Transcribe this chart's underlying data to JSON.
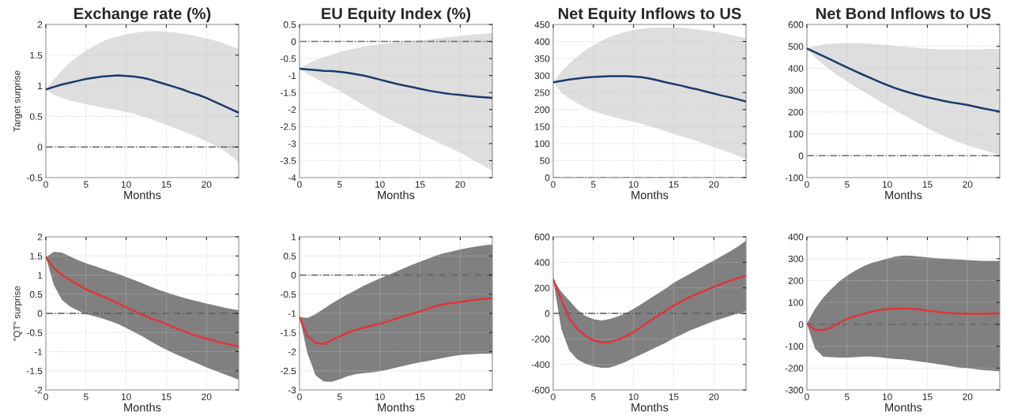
{
  "chart_data": [
    {
      "type": "line",
      "title": "Exchange rate (%)",
      "xlabel": "Months",
      "ylabel": "Target surprise",
      "x": [
        0,
        1,
        2,
        3,
        4,
        5,
        6,
        7,
        8,
        9,
        10,
        11,
        12,
        13,
        14,
        15,
        16,
        17,
        18,
        19,
        20,
        21,
        22,
        23,
        24
      ],
      "xlim": [
        0,
        24
      ],
      "xticks": [
        0,
        5,
        10,
        15,
        20
      ],
      "ylim": [
        -0.5,
        2
      ],
      "yticks": [
        -0.5,
        0,
        0.5,
        1,
        1.5,
        2
      ],
      "grid": true,
      "ref_lines": [
        {
          "axis": "y",
          "value": 0,
          "color": "#555555",
          "line_style": "dashdot"
        }
      ],
      "series": [
        {
          "color": "#1b3a6b",
          "values": [
            0.94,
            0.98,
            1.02,
            1.05,
            1.08,
            1.11,
            1.13,
            1.15,
            1.16,
            1.17,
            1.16,
            1.15,
            1.13,
            1.1,
            1.06,
            1.02,
            0.98,
            0.94,
            0.89,
            0.85,
            0.8,
            0.74,
            0.68,
            0.62,
            0.56
          ],
          "lower": [
            0.94,
            0.85,
            0.8,
            0.76,
            0.73,
            0.7,
            0.67,
            0.64,
            0.62,
            0.6,
            0.57,
            0.54,
            0.5,
            0.46,
            0.41,
            0.36,
            0.31,
            0.26,
            0.21,
            0.15,
            0.09,
            0.03,
            -0.04,
            -0.14,
            -0.25
          ],
          "upper": [
            0.94,
            1.1,
            1.25,
            1.38,
            1.48,
            1.57,
            1.65,
            1.72,
            1.77,
            1.81,
            1.84,
            1.86,
            1.88,
            1.89,
            1.89,
            1.88,
            1.87,
            1.85,
            1.83,
            1.8,
            1.77,
            1.74,
            1.7,
            1.65,
            1.6
          ]
        }
      ]
    },
    {
      "type": "line",
      "title": "EU Equity Index (%)",
      "xlabel": "Months",
      "x": [
        0,
        1,
        2,
        3,
        4,
        5,
        6,
        7,
        8,
        9,
        10,
        11,
        12,
        13,
        14,
        15,
        16,
        17,
        18,
        19,
        20,
        21,
        22,
        23,
        24
      ],
      "xlim": [
        0,
        24
      ],
      "xticks": [
        0,
        5,
        10,
        15,
        20
      ],
      "ylim": [
        -4,
        0.5
      ],
      "yticks": [
        -4,
        -3.5,
        -3,
        -2.5,
        -2,
        -1.5,
        -1,
        -0.5,
        0,
        0.5
      ],
      "grid": true,
      "ref_lines": [
        {
          "axis": "y",
          "value": 0,
          "color": "#555555",
          "line_style": "dashdot"
        }
      ],
      "series": [
        {
          "color": "#1b3a6b",
          "values": [
            -0.8,
            -0.82,
            -0.84,
            -0.86,
            -0.87,
            -0.89,
            -0.92,
            -0.96,
            -1.0,
            -1.06,
            -1.12,
            -1.18,
            -1.24,
            -1.29,
            -1.34,
            -1.39,
            -1.44,
            -1.48,
            -1.52,
            -1.55,
            -1.57,
            -1.6,
            -1.62,
            -1.64,
            -1.66
          ],
          "lower": [
            -0.8,
            -0.95,
            -1.08,
            -1.21,
            -1.33,
            -1.45,
            -1.59,
            -1.73,
            -1.87,
            -2.01,
            -2.14,
            -2.26,
            -2.38,
            -2.49,
            -2.61,
            -2.72,
            -2.83,
            -2.94,
            -3.05,
            -3.16,
            -3.27,
            -3.4,
            -3.53,
            -3.66,
            -3.8
          ],
          "upper": [
            -0.8,
            -0.66,
            -0.55,
            -0.46,
            -0.38,
            -0.31,
            -0.25,
            -0.2,
            -0.15,
            -0.11,
            -0.08,
            -0.05,
            -0.03,
            -0.01,
            0.01,
            0.03,
            0.05,
            0.08,
            0.11,
            0.14,
            0.16,
            0.19,
            0.21,
            0.23,
            0.25
          ]
        }
      ]
    },
    {
      "type": "line",
      "title": "Net Equity Inflows to US",
      "xlabel": "Months",
      "x": [
        0,
        1,
        2,
        3,
        4,
        5,
        6,
        7,
        8,
        9,
        10,
        11,
        12,
        13,
        14,
        15,
        16,
        17,
        18,
        19,
        20,
        21,
        22,
        23,
        24
      ],
      "xlim": [
        0,
        24
      ],
      "xticks": [
        0,
        5,
        10,
        15,
        20
      ],
      "ylim": [
        0,
        450
      ],
      "yticks": [
        0,
        50,
        100,
        150,
        200,
        250,
        300,
        350,
        400,
        450
      ],
      "grid": true,
      "ref_lines": [
        {
          "axis": "y",
          "value": 0,
          "color": "#555555",
          "line_style": "dashdot"
        }
      ],
      "series": [
        {
          "color": "#1b3a6b",
          "values": [
            280,
            284,
            288,
            291,
            294,
            296,
            297,
            298,
            298,
            298,
            297,
            295,
            291,
            286,
            280,
            275,
            270,
            264,
            259,
            253,
            247,
            241,
            236,
            230,
            224
          ],
          "lower": [
            280,
            250,
            232,
            218,
            206,
            196,
            188,
            181,
            175,
            169,
            164,
            158,
            151,
            144,
            136,
            128,
            121,
            114,
            106,
            98,
            90,
            81,
            73,
            64,
            55
          ],
          "upper": [
            280,
            310,
            335,
            356,
            374,
            389,
            402,
            413,
            421,
            428,
            434,
            437,
            440,
            441,
            441,
            441,
            440,
            438,
            435,
            432,
            429,
            425,
            420,
            415,
            410
          ]
        }
      ]
    },
    {
      "type": "line",
      "title": "Net Bond Inflows to US",
      "xlabel": "Months",
      "x": [
        0,
        1,
        2,
        3,
        4,
        5,
        6,
        7,
        8,
        9,
        10,
        11,
        12,
        13,
        14,
        15,
        16,
        17,
        18,
        19,
        20,
        21,
        22,
        23,
        24
      ],
      "xlim": [
        0,
        24
      ],
      "xticks": [
        0,
        5,
        10,
        15,
        20
      ],
      "ylim": [
        -100,
        600
      ],
      "yticks": [
        -100,
        0,
        100,
        200,
        300,
        400,
        500,
        600
      ],
      "grid": true,
      "ref_lines": [
        {
          "axis": "y",
          "value": 0,
          "color": "#555555",
          "line_style": "dashdot"
        }
      ],
      "series": [
        {
          "color": "#1b3a6b",
          "values": [
            490,
            473,
            456,
            439,
            421,
            404,
            387,
            370,
            354,
            338,
            323,
            309,
            297,
            286,
            276,
            267,
            259,
            251,
            244,
            238,
            232,
            224,
            216,
            209,
            202
          ],
          "lower": [
            490,
            450,
            418,
            390,
            364,
            340,
            317,
            294,
            272,
            250,
            229,
            208,
            187,
            166,
            146,
            126,
            108,
            91,
            75,
            60,
            47,
            36,
            25,
            15,
            5
          ],
          "upper": [
            490,
            500,
            508,
            512,
            514,
            515,
            515,
            514,
            512,
            509,
            506,
            502,
            499,
            495,
            492,
            489,
            487,
            485,
            485,
            485,
            485,
            486,
            487,
            488,
            488
          ]
        }
      ]
    },
    {
      "type": "line",
      "xlabel": "Months",
      "ylabel": "\"QT\" surprise",
      "x": [
        0,
        1,
        2,
        3,
        4,
        5,
        6,
        7,
        8,
        9,
        10,
        11,
        12,
        13,
        14,
        15,
        16,
        17,
        18,
        19,
        20,
        21,
        22,
        23,
        24
      ],
      "xlim": [
        0,
        24
      ],
      "xticks": [
        0,
        5,
        10,
        15,
        20
      ],
      "ylim": [
        -2,
        2
      ],
      "yticks": [
        -2,
        -1.5,
        -1,
        -0.5,
        0,
        0.5,
        1,
        1.5,
        2
      ],
      "grid": true,
      "ref_lines": [
        {
          "axis": "y",
          "value": 0,
          "color": "#444444",
          "line_style": "dashdot"
        }
      ],
      "series": [
        {
          "color": "#e0353b",
          "values": [
            1.47,
            1.18,
            1.0,
            0.87,
            0.75,
            0.63,
            0.54,
            0.45,
            0.36,
            0.26,
            0.16,
            0.06,
            -0.04,
            -0.12,
            -0.2,
            -0.28,
            -0.37,
            -0.45,
            -0.53,
            -0.6,
            -0.66,
            -0.72,
            -0.77,
            -0.82,
            -0.86
          ],
          "lower": [
            1.47,
            0.74,
            0.35,
            0.18,
            0.07,
            -0.02,
            -0.07,
            -0.13,
            -0.2,
            -0.28,
            -0.38,
            -0.49,
            -0.6,
            -0.72,
            -0.84,
            -0.95,
            -1.05,
            -1.14,
            -1.23,
            -1.32,
            -1.41,
            -1.49,
            -1.57,
            -1.65,
            -1.73
          ],
          "upper": [
            1.47,
            1.61,
            1.59,
            1.49,
            1.39,
            1.31,
            1.24,
            1.17,
            1.1,
            1.03,
            0.95,
            0.87,
            0.79,
            0.7,
            0.62,
            0.55,
            0.48,
            0.42,
            0.36,
            0.31,
            0.26,
            0.21,
            0.16,
            0.12,
            0.08
          ]
        }
      ]
    },
    {
      "type": "line",
      "xlabel": "Months",
      "x": [
        0,
        1,
        2,
        3,
        4,
        5,
        6,
        7,
        8,
        9,
        10,
        11,
        12,
        13,
        14,
        15,
        16,
        17,
        18,
        19,
        20,
        21,
        22,
        23,
        24
      ],
      "xlim": [
        0,
        24
      ],
      "xticks": [
        0,
        5,
        10,
        15,
        20
      ],
      "ylim": [
        -3,
        1
      ],
      "yticks": [
        -3,
        -2.5,
        -2,
        -1.5,
        -1,
        -0.5,
        0,
        0.5,
        1
      ],
      "grid": true,
      "ref_lines": [
        {
          "axis": "y",
          "value": 0,
          "color": "#444444",
          "line_style": "dashdot"
        }
      ],
      "series": [
        {
          "color": "#e0353b",
          "values": [
            -1.1,
            -1.6,
            -1.77,
            -1.8,
            -1.7,
            -1.6,
            -1.5,
            -1.43,
            -1.37,
            -1.32,
            -1.27,
            -1.21,
            -1.14,
            -1.07,
            -1.01,
            -0.95,
            -0.88,
            -0.81,
            -0.76,
            -0.73,
            -0.7,
            -0.67,
            -0.64,
            -0.62,
            -0.61
          ],
          "lower": [
            -1.1,
            -2.05,
            -2.62,
            -2.78,
            -2.79,
            -2.72,
            -2.64,
            -2.59,
            -2.56,
            -2.54,
            -2.51,
            -2.47,
            -2.42,
            -2.37,
            -2.32,
            -2.28,
            -2.24,
            -2.2,
            -2.16,
            -2.12,
            -2.09,
            -2.07,
            -2.06,
            -2.05,
            -2.05
          ],
          "upper": [
            -1.1,
            -1.12,
            -1.02,
            -0.88,
            -0.74,
            -0.62,
            -0.5,
            -0.39,
            -0.28,
            -0.18,
            -0.09,
            0.0,
            0.09,
            0.18,
            0.27,
            0.35,
            0.43,
            0.51,
            0.57,
            0.62,
            0.67,
            0.71,
            0.75,
            0.78,
            0.8
          ]
        }
      ]
    },
    {
      "type": "line",
      "xlabel": "Months",
      "x": [
        0,
        1,
        2,
        3,
        4,
        5,
        6,
        7,
        8,
        9,
        10,
        11,
        12,
        13,
        14,
        15,
        16,
        17,
        18,
        19,
        20,
        21,
        22,
        23,
        24
      ],
      "xlim": [
        0,
        24
      ],
      "xticks": [
        0,
        5,
        10,
        15,
        20
      ],
      "ylim": [
        -600,
        600
      ],
      "yticks": [
        -600,
        -400,
        -200,
        0,
        200,
        400,
        600
      ],
      "grid": true,
      "ref_lines": [
        {
          "axis": "y",
          "value": 0,
          "color": "#444444",
          "line_style": "dashdot"
        }
      ],
      "series": [
        {
          "color": "#e0353b",
          "values": [
            265,
            110,
            -40,
            -120,
            -175,
            -210,
            -227,
            -225,
            -208,
            -180,
            -145,
            -105,
            -62,
            -20,
            22,
            62,
            95,
            127,
            155,
            182,
            208,
            232,
            255,
            276,
            295
          ],
          "lower": [
            265,
            -120,
            -290,
            -360,
            -395,
            -415,
            -427,
            -425,
            -405,
            -380,
            -350,
            -320,
            -290,
            -260,
            -230,
            -195,
            -165,
            -135,
            -110,
            -85,
            -60,
            -40,
            -20,
            0,
            15
          ],
          "upper": [
            265,
            170,
            100,
            30,
            -20,
            -45,
            -55,
            -45,
            -25,
            0,
            35,
            75,
            115,
            155,
            195,
            240,
            275,
            310,
            345,
            380,
            415,
            450,
            485,
            525,
            570
          ]
        }
      ]
    },
    {
      "type": "line",
      "xlabel": "Months",
      "x": [
        0,
        1,
        2,
        3,
        4,
        5,
        6,
        7,
        8,
        9,
        10,
        11,
        12,
        13,
        14,
        15,
        16,
        17,
        18,
        19,
        20,
        21,
        22,
        23,
        24
      ],
      "xlim": [
        0,
        24
      ],
      "xticks": [
        0,
        5,
        10,
        15,
        20
      ],
      "ylim": [
        -300,
        400
      ],
      "yticks": [
        -300,
        -200,
        -100,
        0,
        100,
        200,
        300,
        400
      ],
      "grid": true,
      "ref_lines": [
        {
          "axis": "y",
          "value": 0,
          "color": "#444444",
          "line_style": "dashdot"
        }
      ],
      "series": [
        {
          "color": "#e0353b",
          "values": [
            3,
            -25,
            -27,
            -15,
            5,
            25,
            37,
            47,
            57,
            65,
            70,
            72,
            73,
            71,
            68,
            63,
            58,
            54,
            51,
            49,
            48,
            48,
            48,
            49,
            50
          ],
          "lower": [
            3,
            -110,
            -148,
            -150,
            -152,
            -152,
            -150,
            -148,
            -148,
            -150,
            -155,
            -158,
            -160,
            -165,
            -170,
            -175,
            -180,
            -185,
            -192,
            -198,
            -200,
            -205,
            -210,
            -212,
            -215
          ],
          "upper": [
            3,
            70,
            120,
            160,
            195,
            222,
            245,
            265,
            280,
            290,
            300,
            310,
            314,
            313,
            310,
            306,
            303,
            300,
            298,
            296,
            294,
            292,
            290,
            290,
            290
          ]
        }
      ]
    }
  ]
}
